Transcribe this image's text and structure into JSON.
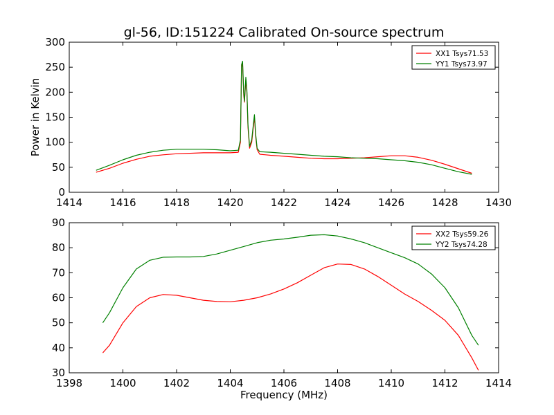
{
  "title": "gl-56, ID:151224 Calibrated On-source spectrum",
  "chart_data": [
    {
      "type": "line",
      "ylabel": "Power in Kelvin",
      "xlabel": "",
      "xlim": [
        1414,
        1430
      ],
      "ylim": [
        0,
        300
      ],
      "xticks": [
        1414,
        1416,
        1418,
        1420,
        1422,
        1424,
        1426,
        1428,
        1430
      ],
      "yticks": [
        0,
        50,
        100,
        150,
        200,
        250,
        300
      ],
      "legend_position": "top-right",
      "grid": false,
      "series": [
        {
          "name": "XX1 Tsys71.53",
          "color": "#ff0000",
          "points": [
            [
              1415.0,
              40
            ],
            [
              1415.5,
              48
            ],
            [
              1416.0,
              58
            ],
            [
              1416.5,
              66
            ],
            [
              1417.0,
              72
            ],
            [
              1417.5,
              75
            ],
            [
              1418.0,
              77
            ],
            [
              1418.5,
              78
            ],
            [
              1419.0,
              79
            ],
            [
              1419.5,
              79
            ],
            [
              1420.0,
              79
            ],
            [
              1420.3,
              80
            ],
            [
              1420.38,
              100
            ],
            [
              1420.42,
              250
            ],
            [
              1420.46,
              258
            ],
            [
              1420.5,
              195
            ],
            [
              1420.53,
              180
            ],
            [
              1420.58,
              225
            ],
            [
              1420.62,
              200
            ],
            [
              1420.66,
              130
            ],
            [
              1420.72,
              88
            ],
            [
              1420.8,
              100
            ],
            [
              1420.86,
              130
            ],
            [
              1420.9,
              150
            ],
            [
              1420.95,
              110
            ],
            [
              1421.0,
              85
            ],
            [
              1421.1,
              76
            ],
            [
              1421.5,
              74
            ],
            [
              1422.0,
              72
            ],
            [
              1422.5,
              70
            ],
            [
              1423.0,
              68
            ],
            [
              1423.5,
              67
            ],
            [
              1424.0,
              67
            ],
            [
              1424.5,
              68
            ],
            [
              1425.0,
              69
            ],
            [
              1425.5,
              71
            ],
            [
              1426.0,
              73
            ],
            [
              1426.5,
              73
            ],
            [
              1427.0,
              70
            ],
            [
              1427.5,
              64
            ],
            [
              1428.0,
              56
            ],
            [
              1428.5,
              47
            ],
            [
              1429.0,
              38
            ]
          ]
        },
        {
          "name": "YY1 Tsys73.97",
          "color": "#008000",
          "points": [
            [
              1415.0,
              44
            ],
            [
              1415.5,
              54
            ],
            [
              1416.0,
              65
            ],
            [
              1416.5,
              74
            ],
            [
              1417.0,
              80
            ],
            [
              1417.5,
              84
            ],
            [
              1418.0,
              86
            ],
            [
              1418.5,
              86
            ],
            [
              1419.0,
              86
            ],
            [
              1419.5,
              85
            ],
            [
              1420.0,
              83
            ],
            [
              1420.3,
              84
            ],
            [
              1420.38,
              105
            ],
            [
              1420.42,
              255
            ],
            [
              1420.46,
              262
            ],
            [
              1420.5,
              200
            ],
            [
              1420.53,
              182
            ],
            [
              1420.58,
              230
            ],
            [
              1420.62,
              205
            ],
            [
              1420.66,
              135
            ],
            [
              1420.72,
              92
            ],
            [
              1420.8,
              105
            ],
            [
              1420.86,
              135
            ],
            [
              1420.9,
              155
            ],
            [
              1420.95,
              115
            ],
            [
              1421.0,
              88
            ],
            [
              1421.1,
              81
            ],
            [
              1421.5,
              80
            ],
            [
              1422.0,
              78
            ],
            [
              1422.5,
              76
            ],
            [
              1423.0,
              74
            ],
            [
              1423.5,
              72
            ],
            [
              1424.0,
              71
            ],
            [
              1424.5,
              69
            ],
            [
              1425.0,
              68
            ],
            [
              1425.5,
              67
            ],
            [
              1426.0,
              65
            ],
            [
              1426.5,
              63
            ],
            [
              1427.0,
              60
            ],
            [
              1427.5,
              55
            ],
            [
              1428.0,
              48
            ],
            [
              1428.5,
              41
            ],
            [
              1429.0,
              36
            ]
          ]
        }
      ]
    },
    {
      "type": "line",
      "ylabel": "",
      "xlabel": "Frequency (MHz)",
      "xlim": [
        1398,
        1414
      ],
      "ylim": [
        30,
        90
      ],
      "xticks": [
        1398,
        1400,
        1402,
        1404,
        1406,
        1408,
        1410,
        1412,
        1414
      ],
      "yticks": [
        30,
        40,
        50,
        60,
        70,
        80,
        90
      ],
      "legend_position": "top-right",
      "grid": false,
      "series": [
        {
          "name": "XX2 Tsys59.26",
          "color": "#ff0000",
          "points": [
            [
              1399.25,
              38
            ],
            [
              1399.5,
              41
            ],
            [
              1400.0,
              50
            ],
            [
              1400.5,
              56.5
            ],
            [
              1401.0,
              60
            ],
            [
              1401.5,
              61.3
            ],
            [
              1402.0,
              61
            ],
            [
              1402.5,
              60
            ],
            [
              1403.0,
              59
            ],
            [
              1403.5,
              58.5
            ],
            [
              1404.0,
              58.4
            ],
            [
              1404.5,
              59
            ],
            [
              1405.0,
              60
            ],
            [
              1405.5,
              61.5
            ],
            [
              1406.0,
              63.5
            ],
            [
              1406.5,
              66
            ],
            [
              1407.0,
              69
            ],
            [
              1407.5,
              72
            ],
            [
              1408.0,
              73.5
            ],
            [
              1408.5,
              73.3
            ],
            [
              1409.0,
              71.5
            ],
            [
              1409.5,
              68.5
            ],
            [
              1410.0,
              65
            ],
            [
              1410.5,
              61.5
            ],
            [
              1411.0,
              58.5
            ],
            [
              1411.5,
              55
            ],
            [
              1412.0,
              51
            ],
            [
              1412.5,
              45
            ],
            [
              1413.0,
              36
            ],
            [
              1413.25,
              31
            ]
          ]
        },
        {
          "name": "YY2 Tsys74.28",
          "color": "#008000",
          "points": [
            [
              1399.25,
              50
            ],
            [
              1399.5,
              54
            ],
            [
              1400.0,
              64
            ],
            [
              1400.5,
              71.5
            ],
            [
              1401.0,
              75
            ],
            [
              1401.5,
              76.2
            ],
            [
              1402.0,
              76.3
            ],
            [
              1402.5,
              76.3
            ],
            [
              1403.0,
              76.5
            ],
            [
              1403.5,
              77.5
            ],
            [
              1404.0,
              79
            ],
            [
              1404.5,
              80.5
            ],
            [
              1405.0,
              82
            ],
            [
              1405.5,
              83
            ],
            [
              1406.0,
              83.5
            ],
            [
              1406.5,
              84.2
            ],
            [
              1407.0,
              85
            ],
            [
              1407.5,
              85.2
            ],
            [
              1408.0,
              84.7
            ],
            [
              1408.5,
              83.5
            ],
            [
              1409.0,
              82
            ],
            [
              1409.5,
              80
            ],
            [
              1410.0,
              78
            ],
            [
              1410.5,
              76
            ],
            [
              1411.0,
              73.5
            ],
            [
              1411.5,
              69.5
            ],
            [
              1412.0,
              64
            ],
            [
              1412.5,
              56
            ],
            [
              1413.0,
              45
            ],
            [
              1413.25,
              41
            ]
          ]
        }
      ]
    }
  ]
}
